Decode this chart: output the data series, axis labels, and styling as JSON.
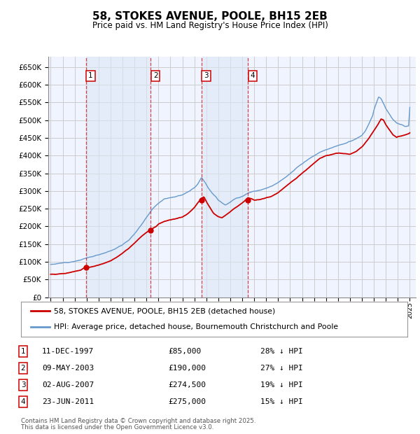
{
  "title": "58, STOKES AVENUE, POOLE, BH15 2EB",
  "subtitle": "Price paid vs. HM Land Registry's House Price Index (HPI)",
  "ylim": [
    0,
    680000
  ],
  "yticks": [
    0,
    50000,
    100000,
    150000,
    200000,
    250000,
    300000,
    350000,
    400000,
    450000,
    500000,
    550000,
    600000,
    650000
  ],
  "xlim_start": 1994.8,
  "xlim_end": 2025.5,
  "red_color": "#cc0000",
  "blue_color": "#6699cc",
  "blue_fill_color": "#dce8f5",
  "grid_color": "#cccccc",
  "background_color": "#ffffff",
  "plot_bg_color": "#f0f4ff",
  "sales": [
    {
      "date": 1997.94,
      "price": 85000,
      "label": "1",
      "pct": "28% ↓ HPI",
      "date_str": "11-DEC-1997",
      "price_str": "£85,000"
    },
    {
      "date": 2003.36,
      "price": 190000,
      "label": "2",
      "pct": "27% ↓ HPI",
      "date_str": "09-MAY-2003",
      "price_str": "£190,000"
    },
    {
      "date": 2007.59,
      "price": 274500,
      "label": "3",
      "pct": "19% ↓ HPI",
      "date_str": "02-AUG-2007",
      "price_str": "£274,500"
    },
    {
      "date": 2011.48,
      "price": 275000,
      "label": "4",
      "pct": "15% ↓ HPI",
      "date_str": "23-JUN-2011",
      "price_str": "£275,000"
    }
  ],
  "legend_line1": "58, STOKES AVENUE, POOLE, BH15 2EB (detached house)",
  "legend_line2": "HPI: Average price, detached house, Bournemouth Christchurch and Poole",
  "footer1": "Contains HM Land Registry data © Crown copyright and database right 2025.",
  "footer2": "This data is licensed under the Open Government Licence v3.0.",
  "hpi_anchors": [
    [
      1995.0,
      93000
    ],
    [
      1995.5,
      95000
    ],
    [
      1996.0,
      97000
    ],
    [
      1996.5,
      100000
    ],
    [
      1997.0,
      104000
    ],
    [
      1997.5,
      108000
    ],
    [
      1998.0,
      113000
    ],
    [
      1998.5,
      117000
    ],
    [
      1999.0,
      122000
    ],
    [
      1999.5,
      128000
    ],
    [
      2000.0,
      135000
    ],
    [
      2000.5,
      143000
    ],
    [
      2001.0,
      152000
    ],
    [
      2001.5,
      165000
    ],
    [
      2002.0,
      183000
    ],
    [
      2002.5,
      205000
    ],
    [
      2003.0,
      230000
    ],
    [
      2003.5,
      255000
    ],
    [
      2004.0,
      272000
    ],
    [
      2004.5,
      285000
    ],
    [
      2005.0,
      290000
    ],
    [
      2005.5,
      293000
    ],
    [
      2006.0,
      298000
    ],
    [
      2006.5,
      308000
    ],
    [
      2007.0,
      318000
    ],
    [
      2007.3,
      330000
    ],
    [
      2007.6,
      348000
    ],
    [
      2007.9,
      335000
    ],
    [
      2008.2,
      318000
    ],
    [
      2008.5,
      305000
    ],
    [
      2008.8,
      295000
    ],
    [
      2009.0,
      285000
    ],
    [
      2009.3,
      278000
    ],
    [
      2009.6,
      272000
    ],
    [
      2009.9,
      278000
    ],
    [
      2010.2,
      285000
    ],
    [
      2010.5,
      290000
    ],
    [
      2010.8,
      292000
    ],
    [
      2011.0,
      295000
    ],
    [
      2011.3,
      300000
    ],
    [
      2011.6,
      305000
    ],
    [
      2011.9,
      308000
    ],
    [
      2012.0,
      308000
    ],
    [
      2012.5,
      310000
    ],
    [
      2013.0,
      315000
    ],
    [
      2013.5,
      322000
    ],
    [
      2014.0,
      333000
    ],
    [
      2014.5,
      345000
    ],
    [
      2015.0,
      358000
    ],
    [
      2015.5,
      372000
    ],
    [
      2016.0,
      385000
    ],
    [
      2016.5,
      398000
    ],
    [
      2017.0,
      408000
    ],
    [
      2017.5,
      418000
    ],
    [
      2018.0,
      425000
    ],
    [
      2018.5,
      432000
    ],
    [
      2019.0,
      438000
    ],
    [
      2019.5,
      443000
    ],
    [
      2020.0,
      448000
    ],
    [
      2020.5,
      455000
    ],
    [
      2021.0,
      465000
    ],
    [
      2021.3,
      478000
    ],
    [
      2021.6,
      498000
    ],
    [
      2021.9,
      520000
    ],
    [
      2022.0,
      535000
    ],
    [
      2022.2,
      555000
    ],
    [
      2022.4,
      572000
    ],
    [
      2022.6,
      568000
    ],
    [
      2022.8,
      555000
    ],
    [
      2023.0,
      540000
    ],
    [
      2023.3,
      525000
    ],
    [
      2023.6,
      510000
    ],
    [
      2023.9,
      500000
    ],
    [
      2024.0,
      498000
    ],
    [
      2024.3,
      495000
    ],
    [
      2024.6,
      490000
    ],
    [
      2024.9,
      492000
    ],
    [
      2025.0,
      545000
    ]
  ],
  "red_anchors": [
    [
      1995.0,
      65000
    ],
    [
      1995.5,
      66000
    ],
    [
      1996.0,
      67500
    ],
    [
      1996.5,
      70000
    ],
    [
      1997.0,
      73000
    ],
    [
      1997.5,
      77000
    ],
    [
      1997.94,
      85000
    ],
    [
      1998.2,
      84000
    ],
    [
      1998.5,
      86000
    ],
    [
      1999.0,
      90000
    ],
    [
      1999.5,
      95000
    ],
    [
      2000.0,
      102000
    ],
    [
      2000.5,
      112000
    ],
    [
      2001.0,
      123000
    ],
    [
      2001.5,
      135000
    ],
    [
      2002.0,
      150000
    ],
    [
      2002.5,
      168000
    ],
    [
      2003.0,
      182000
    ],
    [
      2003.36,
      190000
    ],
    [
      2003.8,
      198000
    ],
    [
      2004.0,
      205000
    ],
    [
      2004.5,
      212000
    ],
    [
      2005.0,
      215000
    ],
    [
      2005.5,
      218000
    ],
    [
      2006.0,
      222000
    ],
    [
      2006.5,
      232000
    ],
    [
      2007.0,
      248000
    ],
    [
      2007.3,
      262000
    ],
    [
      2007.59,
      274500
    ],
    [
      2007.8,
      278000
    ],
    [
      2008.0,
      265000
    ],
    [
      2008.3,
      248000
    ],
    [
      2008.6,
      232000
    ],
    [
      2009.0,
      222000
    ],
    [
      2009.3,
      218000
    ],
    [
      2009.6,
      225000
    ],
    [
      2010.0,
      235000
    ],
    [
      2010.5,
      248000
    ],
    [
      2011.0,
      260000
    ],
    [
      2011.48,
      275000
    ],
    [
      2011.8,
      272000
    ],
    [
      2012.0,
      268000
    ],
    [
      2012.5,
      270000
    ],
    [
      2013.0,
      275000
    ],
    [
      2013.5,
      280000
    ],
    [
      2014.0,
      290000
    ],
    [
      2014.5,
      305000
    ],
    [
      2015.0,
      318000
    ],
    [
      2015.5,
      330000
    ],
    [
      2016.0,
      345000
    ],
    [
      2016.5,
      360000
    ],
    [
      2017.0,
      375000
    ],
    [
      2017.5,
      388000
    ],
    [
      2018.0,
      395000
    ],
    [
      2018.5,
      398000
    ],
    [
      2019.0,
      402000
    ],
    [
      2019.5,
      400000
    ],
    [
      2020.0,
      398000
    ],
    [
      2020.5,
      405000
    ],
    [
      2021.0,
      418000
    ],
    [
      2021.5,
      440000
    ],
    [
      2022.0,
      465000
    ],
    [
      2022.3,
      480000
    ],
    [
      2022.6,
      498000
    ],
    [
      2022.8,
      495000
    ],
    [
      2023.0,
      482000
    ],
    [
      2023.3,
      468000
    ],
    [
      2023.6,
      455000
    ],
    [
      2023.9,
      448000
    ],
    [
      2024.0,
      450000
    ],
    [
      2024.3,
      452000
    ],
    [
      2024.6,
      455000
    ],
    [
      2024.9,
      458000
    ],
    [
      2025.0,
      460000
    ]
  ]
}
